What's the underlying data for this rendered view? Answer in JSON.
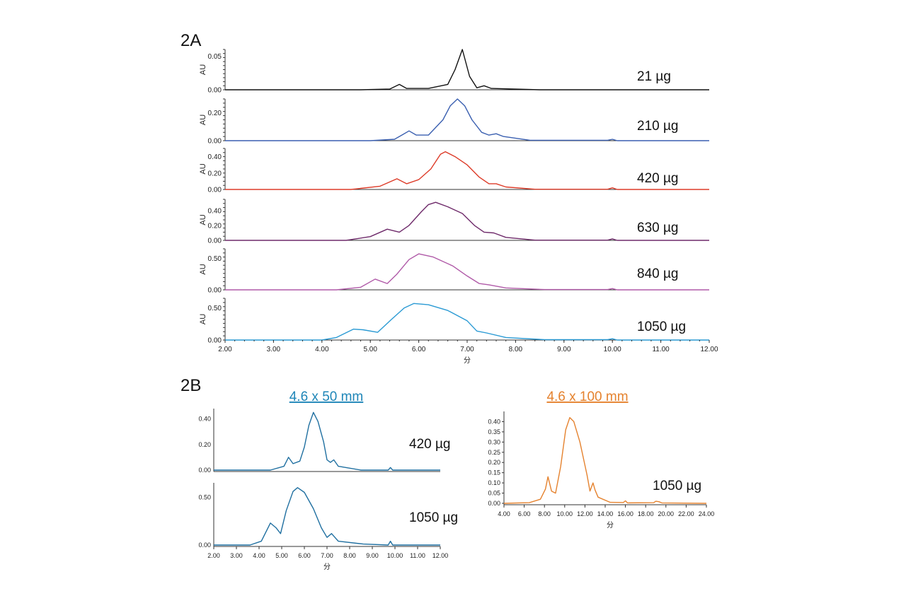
{
  "figure": {
    "panel_a_label": "2A",
    "panel_b_label": "2B",
    "col_50_title": "4.6 x 50 mm",
    "col_100_title": "4.6 x 100 mm",
    "x_axis_label": "分",
    "y_axis_label": "AU"
  },
  "chart_data": [
    {
      "id": "2A",
      "type": "line",
      "title": "2A",
      "xlabel": "分",
      "ylabel": "AU",
      "xlim": [
        2.0,
        12.0
      ],
      "xticks": [
        "2.00",
        "3.00",
        "4.00",
        "5.00",
        "6.00",
        "7.00",
        "8.00",
        "9.00",
        "10.00",
        "11.00",
        "12.00"
      ],
      "series": [
        {
          "name": "21 µg",
          "color": "#111111",
          "ymax": 0.06,
          "yticks": [
            "0.00",
            "0.05"
          ],
          "points": [
            [
              2,
              0
            ],
            [
              4.8,
              0
            ],
            [
              5.4,
              0.001
            ],
            [
              5.6,
              0.008
            ],
            [
              5.75,
              0.002
            ],
            [
              6.2,
              0.002
            ],
            [
              6.6,
              0.008
            ],
            [
              6.75,
              0.03
            ],
            [
              6.9,
              0.06
            ],
            [
              7.05,
              0.02
            ],
            [
              7.2,
              0.003
            ],
            [
              7.35,
              0.006
            ],
            [
              7.5,
              0.002
            ],
            [
              8.5,
              0
            ],
            [
              12,
              0
            ]
          ]
        },
        {
          "name": "210 µg",
          "color": "#3a5fb0",
          "ymax": 0.3,
          "yticks": [
            "0.00",
            "0.20"
          ],
          "points": [
            [
              2,
              0
            ],
            [
              5.0,
              0
            ],
            [
              5.5,
              0.01
            ],
            [
              5.65,
              0.04
            ],
            [
              5.8,
              0.07
            ],
            [
              5.95,
              0.04
            ],
            [
              6.2,
              0.04
            ],
            [
              6.5,
              0.15
            ],
            [
              6.65,
              0.25
            ],
            [
              6.8,
              0.3
            ],
            [
              6.95,
              0.25
            ],
            [
              7.1,
              0.15
            ],
            [
              7.3,
              0.06
            ],
            [
              7.45,
              0.04
            ],
            [
              7.6,
              0.05
            ],
            [
              7.75,
              0.03
            ],
            [
              8.3,
              0.003
            ],
            [
              9.9,
              0.003
            ],
            [
              10,
              0.01
            ],
            [
              10.1,
              0
            ],
            [
              12,
              0
            ]
          ]
        },
        {
          "name": "420 µg",
          "color": "#dd3b28",
          "ymax": 0.5,
          "yticks": [
            "0.00",
            "0.20",
            "0.40"
          ],
          "points": [
            [
              2,
              0
            ],
            [
              4.6,
              0
            ],
            [
              5.2,
              0.04
            ],
            [
              5.55,
              0.13
            ],
            [
              5.75,
              0.07
            ],
            [
              6.0,
              0.12
            ],
            [
              6.25,
              0.25
            ],
            [
              6.45,
              0.43
            ],
            [
              6.55,
              0.46
            ],
            [
              6.75,
              0.4
            ],
            [
              7.0,
              0.3
            ],
            [
              7.25,
              0.15
            ],
            [
              7.45,
              0.07
            ],
            [
              7.6,
              0.07
            ],
            [
              7.8,
              0.03
            ],
            [
              8.4,
              0.003
            ],
            [
              9.9,
              0.003
            ],
            [
              10,
              0.02
            ],
            [
              10.1,
              0
            ],
            [
              12,
              0
            ]
          ]
        },
        {
          "name": "630 µg",
          "color": "#6e2a6a",
          "ymax": 0.55,
          "yticks": [
            "0.00",
            "0.20",
            "0.40"
          ],
          "points": [
            [
              2,
              0
            ],
            [
              4.5,
              0
            ],
            [
              5.0,
              0.05
            ],
            [
              5.35,
              0.15
            ],
            [
              5.6,
              0.11
            ],
            [
              5.8,
              0.2
            ],
            [
              6.05,
              0.38
            ],
            [
              6.2,
              0.48
            ],
            [
              6.35,
              0.51
            ],
            [
              6.6,
              0.45
            ],
            [
              6.9,
              0.36
            ],
            [
              7.15,
              0.2
            ],
            [
              7.35,
              0.11
            ],
            [
              7.55,
              0.1
            ],
            [
              7.8,
              0.04
            ],
            [
              8.4,
              0.003
            ],
            [
              9.9,
              0.003
            ],
            [
              10,
              0.02
            ],
            [
              10.1,
              0
            ],
            [
              12,
              0
            ]
          ]
        },
        {
          "name": "840 µg",
          "color": "#b05aa8",
          "ymax": 0.65,
          "yticks": [
            "0.00",
            "0.50"
          ],
          "points": [
            [
              2,
              0
            ],
            [
              4.3,
              0
            ],
            [
              4.8,
              0.04
            ],
            [
              5.1,
              0.17
            ],
            [
              5.35,
              0.1
            ],
            [
              5.55,
              0.25
            ],
            [
              5.8,
              0.48
            ],
            [
              6.0,
              0.57
            ],
            [
              6.3,
              0.52
            ],
            [
              6.7,
              0.38
            ],
            [
              7.0,
              0.22
            ],
            [
              7.25,
              0.1
            ],
            [
              7.45,
              0.08
            ],
            [
              7.8,
              0.03
            ],
            [
              8.6,
              0.005
            ],
            [
              9.9,
              0.005
            ],
            [
              10,
              0.02
            ],
            [
              10.1,
              0
            ],
            [
              12,
              0
            ]
          ]
        },
        {
          "name": "1050 µg",
          "color": "#2a9ad4",
          "ymax": 0.65,
          "yticks": [
            "0.00",
            "0.50"
          ],
          "points": [
            [
              2,
              0
            ],
            [
              4.0,
              0
            ],
            [
              4.3,
              0.04
            ],
            [
              4.65,
              0.17
            ],
            [
              4.85,
              0.16
            ],
            [
              5.15,
              0.12
            ],
            [
              5.45,
              0.33
            ],
            [
              5.7,
              0.5
            ],
            [
              5.9,
              0.57
            ],
            [
              6.2,
              0.55
            ],
            [
              6.6,
              0.46
            ],
            [
              7.0,
              0.3
            ],
            [
              7.2,
              0.14
            ],
            [
              7.4,
              0.11
            ],
            [
              7.8,
              0.04
            ],
            [
              8.6,
              0.006
            ],
            [
              9.9,
              0.006
            ],
            [
              10,
              0.02
            ],
            [
              10.1,
              0
            ],
            [
              12,
              0
            ]
          ]
        }
      ]
    },
    {
      "id": "2B-50mm",
      "type": "line",
      "title": "4.6 x 50 mm",
      "xlabel": "分",
      "ylabel": "",
      "xlim": [
        2.0,
        12.0
      ],
      "xticks": [
        "2.00",
        "3.00",
        "4.00",
        "5.00",
        "6.00",
        "7.00",
        "8.00",
        "9.00",
        "10.00",
        "11.00",
        "12.00"
      ],
      "series": [
        {
          "name": "420 µg",
          "color": "#1f6fa0",
          "ymax": 0.48,
          "yticks": [
            "0.00",
            "0.20",
            "0.40"
          ],
          "points": [
            [
              2,
              0
            ],
            [
              4.5,
              0
            ],
            [
              5.1,
              0.03
            ],
            [
              5.3,
              0.1
            ],
            [
              5.5,
              0.05
            ],
            [
              5.8,
              0.07
            ],
            [
              6.0,
              0.18
            ],
            [
              6.2,
              0.35
            ],
            [
              6.4,
              0.45
            ],
            [
              6.6,
              0.38
            ],
            [
              6.85,
              0.22
            ],
            [
              7.0,
              0.08
            ],
            [
              7.15,
              0.06
            ],
            [
              7.3,
              0.08
            ],
            [
              7.5,
              0.03
            ],
            [
              8.5,
              0
            ],
            [
              9.7,
              0
            ],
            [
              9.8,
              0.02
            ],
            [
              9.9,
              0
            ],
            [
              12,
              0
            ]
          ]
        },
        {
          "name": "1050 µg",
          "color": "#1f6fa0",
          "ymax": 0.65,
          "yticks": [
            "0.00",
            "0.50"
          ],
          "points": [
            [
              2,
              0
            ],
            [
              3.6,
              0
            ],
            [
              4.1,
              0.04
            ],
            [
              4.5,
              0.23
            ],
            [
              4.75,
              0.18
            ],
            [
              4.95,
              0.12
            ],
            [
              5.2,
              0.36
            ],
            [
              5.5,
              0.56
            ],
            [
              5.7,
              0.6
            ],
            [
              6.0,
              0.55
            ],
            [
              6.4,
              0.38
            ],
            [
              6.75,
              0.18
            ],
            [
              7.0,
              0.08
            ],
            [
              7.2,
              0.12
            ],
            [
              7.5,
              0.04
            ],
            [
              8.6,
              0.01
            ],
            [
              9.7,
              0
            ],
            [
              9.8,
              0.04
            ],
            [
              9.9,
              0
            ],
            [
              12,
              0
            ]
          ]
        }
      ]
    },
    {
      "id": "2B-100mm",
      "type": "line",
      "title": "4.6 x 100 mm",
      "xlabel": "分",
      "ylabel": "",
      "xlim": [
        4.0,
        24.0
      ],
      "xticks": [
        "4.00",
        "6.00",
        "8.00",
        "10.00",
        "12.00",
        "14.00",
        "16.00",
        "18.00",
        "20.00",
        "22.00",
        "24.00"
      ],
      "yticks": [
        "0.00",
        "0.05",
        "0.10",
        "0.15",
        "0.20",
        "0.25",
        "0.30",
        "0.35",
        "0.40"
      ],
      "series": [
        {
          "name": "1050 µg",
          "color": "#e5822e",
          "ymax": 0.45,
          "points": [
            [
              4,
              0
            ],
            [
              6.5,
              0.003
            ],
            [
              7.6,
              0.02
            ],
            [
              8.1,
              0.07
            ],
            [
              8.35,
              0.13
            ],
            [
              8.7,
              0.06
            ],
            [
              9.1,
              0.05
            ],
            [
              9.6,
              0.18
            ],
            [
              10.1,
              0.36
            ],
            [
              10.5,
              0.42
            ],
            [
              10.9,
              0.4
            ],
            [
              11.5,
              0.3
            ],
            [
              12.2,
              0.14
            ],
            [
              12.5,
              0.06
            ],
            [
              12.8,
              0.1
            ],
            [
              13.0,
              0.065
            ],
            [
              13.3,
              0.03
            ],
            [
              14.5,
              0.005
            ],
            [
              15.8,
              0.004
            ],
            [
              16.0,
              0.012
            ],
            [
              16.2,
              0.002
            ],
            [
              18.8,
              0.003
            ],
            [
              19.0,
              0.01
            ],
            [
              19.3,
              0.008
            ],
            [
              19.6,
              0.002
            ],
            [
              24,
              0
            ]
          ]
        }
      ]
    }
  ]
}
